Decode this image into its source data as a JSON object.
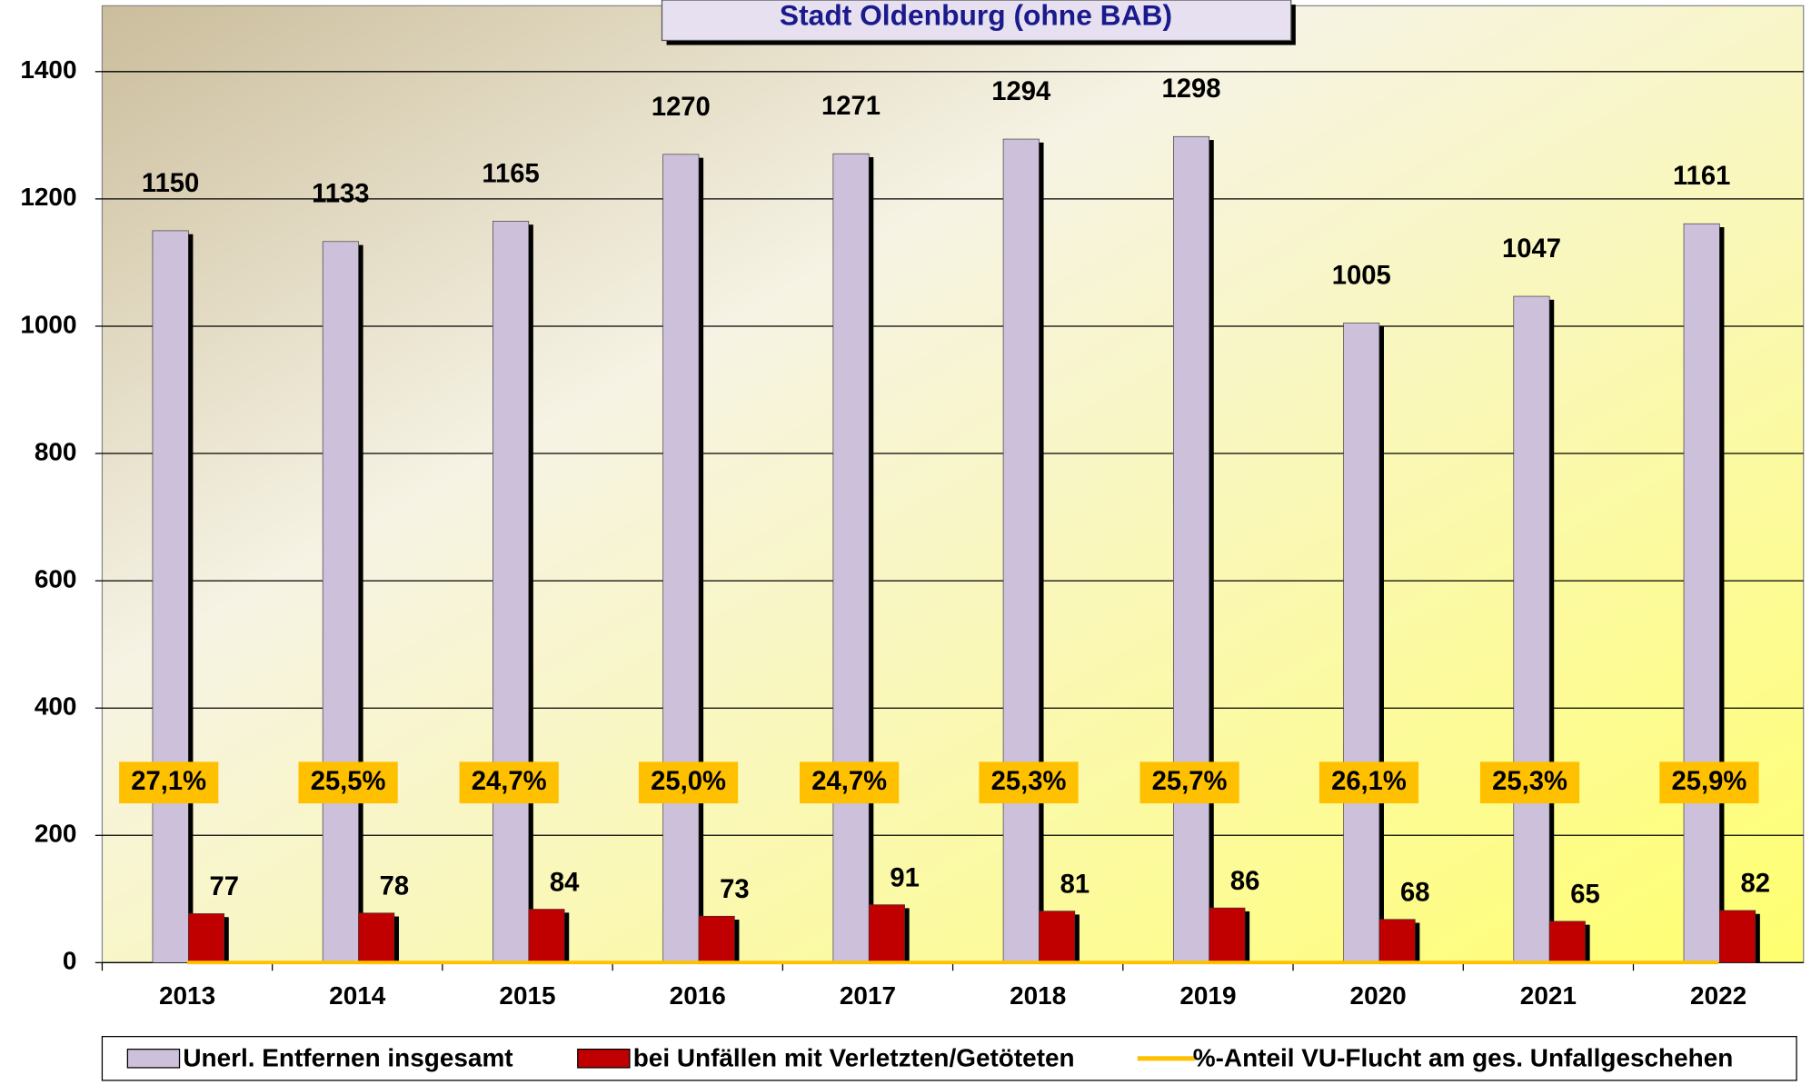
{
  "chart_data": {
    "type": "bar",
    "title": "Stadt Oldenburg (ohne BAB)",
    "categories": [
      "2013",
      "2014",
      "2015",
      "2016",
      "2017",
      "2018",
      "2019",
      "2020",
      "2021",
      "2022"
    ],
    "series": [
      {
        "name": "Unerl. Entfernen insgesamt",
        "color": "#ccc0da",
        "values": [
          1150,
          1133,
          1165,
          1270,
          1271,
          1294,
          1298,
          1005,
          1047,
          1161
        ]
      },
      {
        "name": "bei Unfällen mit Verletzten/Getöteten",
        "color": "#c00000",
        "values": [
          77,
          78,
          84,
          73,
          91,
          81,
          86,
          68,
          65,
          82
        ]
      },
      {
        "name": "%-Anteil VU-Flucht am ges. Unfallgeschehen",
        "type": "line",
        "color": "#ffc000",
        "values": [
          0.271,
          0.255,
          0.247,
          0.25,
          0.247,
          0.253,
          0.257,
          0.261,
          0.253,
          0.259
        ],
        "value_labels": [
          "27,1%",
          "25,5%",
          "24,7%",
          "25,0%",
          "24,7%",
          "25,3%",
          "25,7%",
          "26,1%",
          "25,3%",
          "25,9%"
        ]
      }
    ],
    "ylim": [
      0,
      1500
    ],
    "yticks": [
      0,
      200,
      400,
      600,
      800,
      1000,
      1200,
      1400
    ],
    "grid": true,
    "legend": "bottom"
  }
}
